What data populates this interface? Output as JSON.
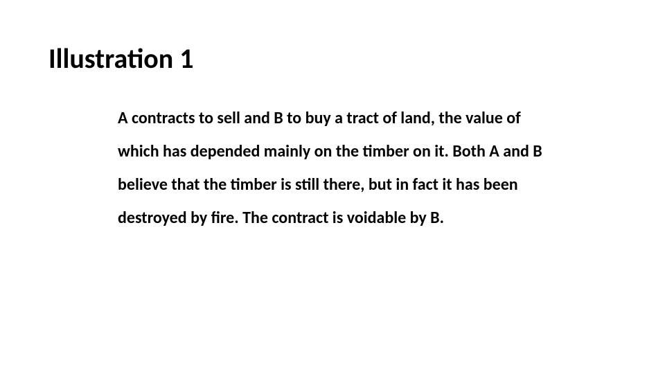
{
  "slide": {
    "title": "Illustration 1",
    "body": "A contracts to sell and B to buy a tract of land, the value of which has depended mainly on the timber on it. Both A and B believe that the timber is still there, but in fact it has been destroyed by fire. The contract is voidable by B.",
    "title_fontsize": 40,
    "body_fontsize": 24,
    "title_color": "#000000",
    "body_color": "#000000",
    "background_color": "#ffffff",
    "font_family": "Calibri"
  }
}
